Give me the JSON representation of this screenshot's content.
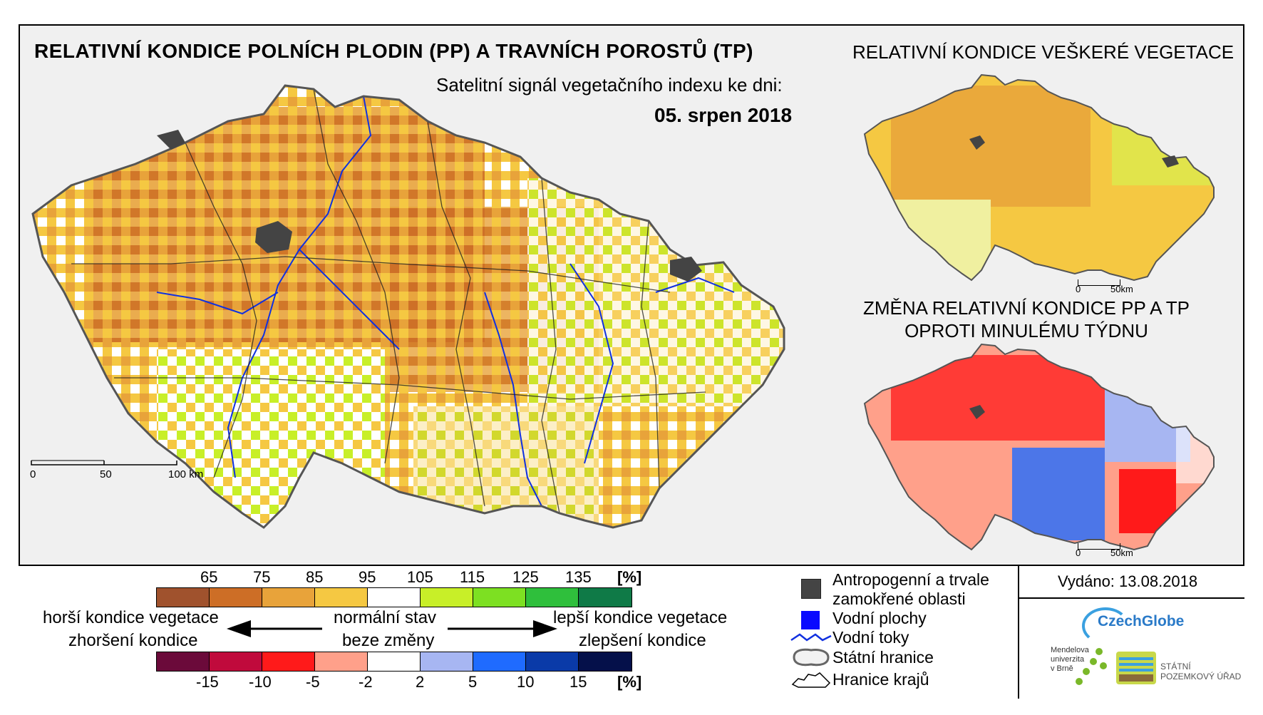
{
  "header": {
    "title_main": "RELATIVNÍ KONDICE POLNÍCH PLODIN (PP) A TRAVNÍCH POROSTŮ (TP)",
    "subtitle": "Satelitní signál vegetačního indexu ke dni:",
    "date": "05. srpen 2018"
  },
  "inset_vegetation": {
    "title": "RELATIVNÍ KONDICE VEŠKERÉ VEGETACE",
    "scale_labels": [
      "0",
      "50km"
    ]
  },
  "inset_change": {
    "title_line1": "ZMĚNA RELATIVNÍ KONDICE PP A TP",
    "title_line2": "OPROTI MINULÉMU TÝDNU",
    "scale_labels": [
      "0",
      "50km"
    ]
  },
  "main_map": {
    "scale_labels": [
      "0",
      "50",
      "100 km"
    ]
  },
  "legend": {
    "condition_scale": {
      "ticks": [
        "65",
        "75",
        "85",
        "95",
        "105",
        "115",
        "125",
        "135"
      ],
      "unit": "[%]",
      "colors": [
        "#a0522d",
        "#cd6e26",
        "#e8a33a",
        "#f5c842",
        "#ffffff",
        "#c8ef28",
        "#7de022",
        "#2fbf3c",
        "#0f7a47"
      ]
    },
    "change_scale": {
      "ticks": [
        "-15",
        "-10",
        "-5",
        "-2",
        "2",
        "5",
        "10",
        "15"
      ],
      "unit": "[%]",
      "colors": [
        "#6b0a3a",
        "#c00a3c",
        "#ff1a1a",
        "#ffa08a",
        "#ffffff",
        "#a7b6f2",
        "#1f6bff",
        "#0a3aa8",
        "#05104a"
      ]
    },
    "left_line1": "horší kondice vegetace",
    "left_line2": "zhoršení kondice",
    "center_line1": "normální stav",
    "center_line2": "beze změny",
    "right_line1": "lepší kondice vegetace",
    "right_line2": "zlepšení kondice"
  },
  "key": {
    "anthropogenic": "Antropogenní a trvale zamokřené oblasti",
    "anthropogenic_line1": "Antropogenní a trvale",
    "anthropogenic_line2": "zamokřené oblasti",
    "water_bodies": "Vodní plochy",
    "rivers": "Vodní toky",
    "state_border": "Státní hranice",
    "region_border": "Hranice krajů"
  },
  "issued": "Vydáno: 13.08.2018",
  "logos": {
    "czechglobe": "CzechGlobe",
    "mendel_line1": "Mendelova",
    "mendel_line2": "univerzita",
    "mendel_line3": "v Brně",
    "spu_line1": "STÁTNÍ",
    "spu_line2": "POZEMKOVÝ ÚŘAD"
  }
}
